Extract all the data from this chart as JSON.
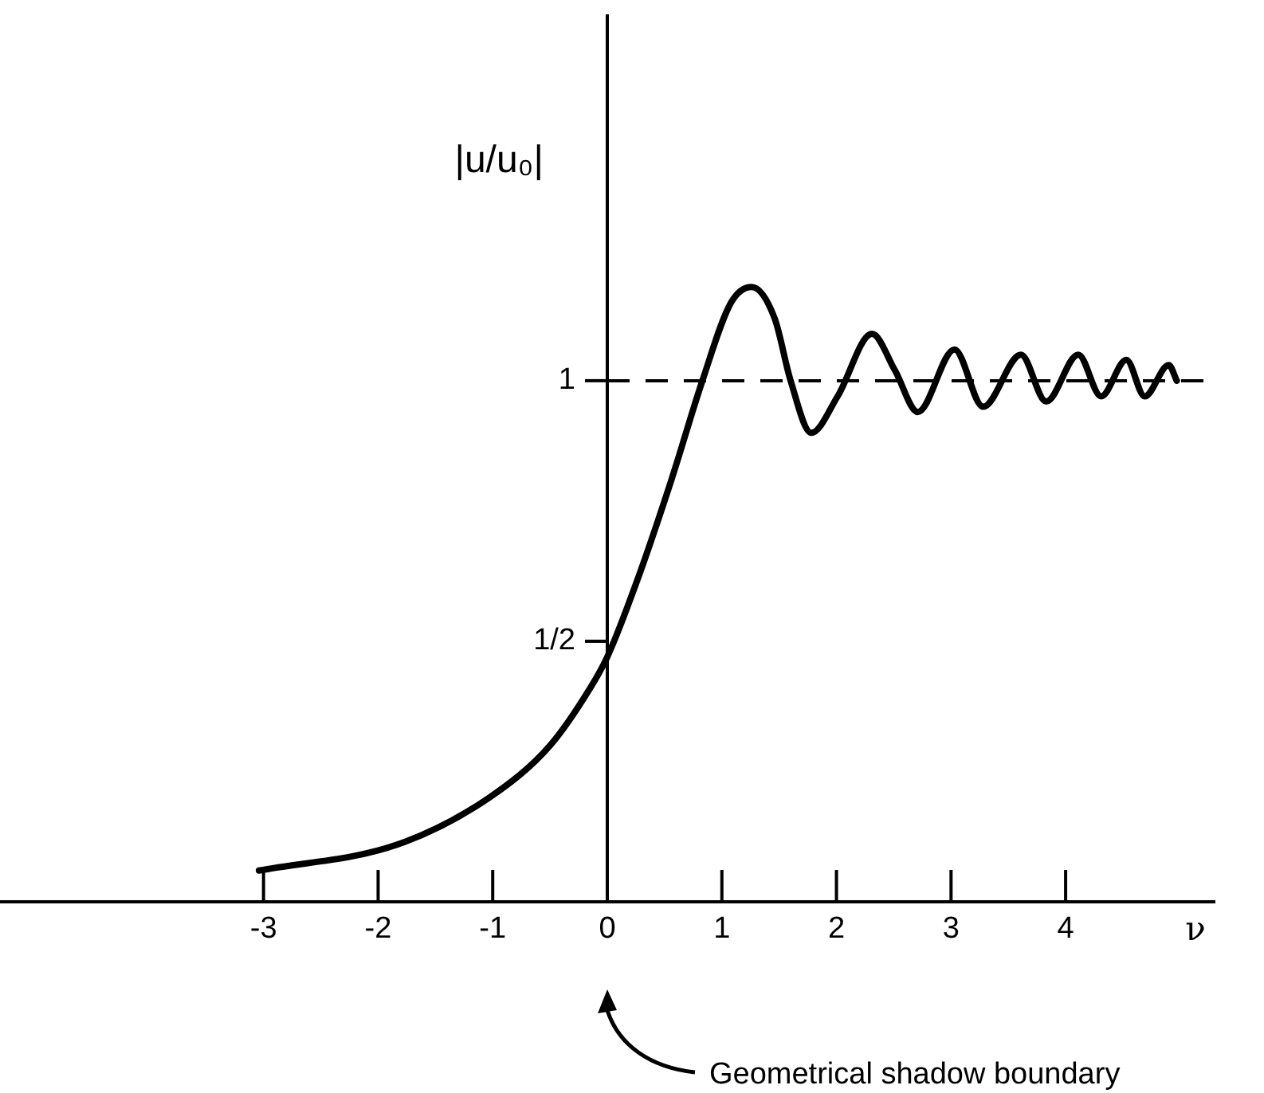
{
  "chart_data": {
    "type": "line",
    "xlabel": "ν",
    "ylabel": "|u/u₀|",
    "annotations": [
      "Geometrical shadow boundary"
    ],
    "x": [
      -3.04,
      -1.83,
      -1.03,
      -0.5,
      -0.15,
      0,
      0.25,
      0.56,
      0.83,
      1.08,
      1.26,
      1.46,
      1.6,
      1.78,
      2.01,
      2.31,
      2.51,
      2.71,
      3.03,
      3.28,
      3.61,
      3.83,
      4.11,
      4.31,
      4.53,
      4.69,
      4.9,
      4.97
    ],
    "series": [
      {
        "color": "#000000",
        "values": [
          0.06,
          0.11,
          0.2,
          0.3,
          0.41,
          0.47,
          0.61,
          0.81,
          1.0,
          1.15,
          1.18,
          1.12,
          1.0,
          0.9,
          0.97,
          1.09,
          1.02,
          0.94,
          1.06,
          0.95,
          1.05,
          0.96,
          1.05,
          0.97,
          1.04,
          0.97,
          1.03,
          1.0
        ]
      }
    ],
    "xlim": [
      -5.3,
      5.3
    ],
    "ylim": [
      0,
      1.7
    ],
    "xticks": [
      -3,
      -2,
      -1,
      0,
      1,
      2,
      3,
      4
    ],
    "yticks": [
      {
        "value": 0.5,
        "label": "1/2"
      },
      1
    ],
    "ref_lines": [
      {
        "axis": "y",
        "value": 1,
        "line_style": "dashed",
        "color": "#000000"
      }
    ],
    "grid": false,
    "legend": false,
    "marker": "none",
    "line_style": "solid"
  }
}
